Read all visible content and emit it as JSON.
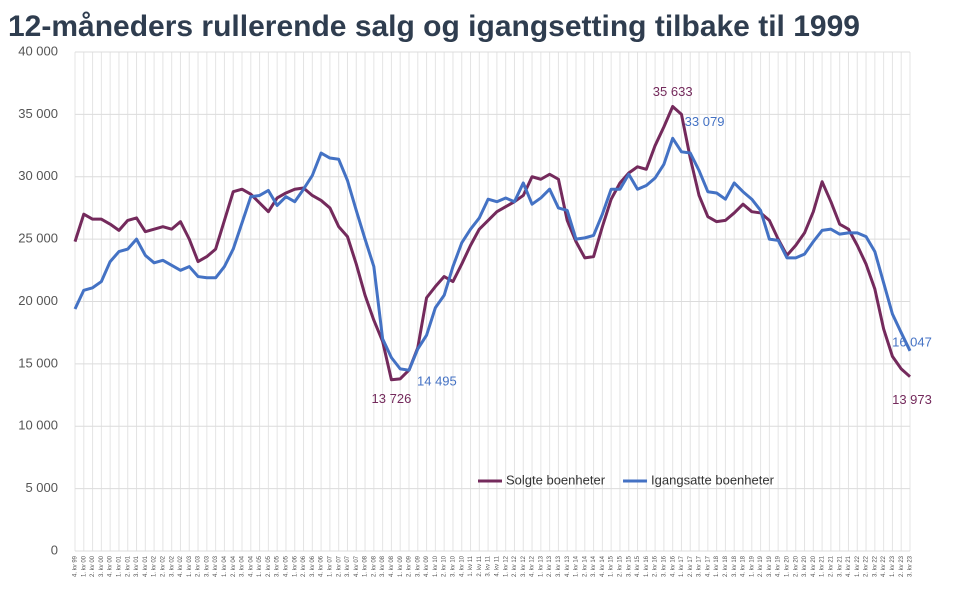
{
  "chart_data": {
    "type": "line",
    "title": "12-måneders rullerende salg og igangsetting tilbake til 1999",
    "categories": [
      "4. kv 99",
      "1. kv 00",
      "2. kv 00",
      "3. kv 00",
      "4. kv 00",
      "1. kv 01",
      "2. kv 01",
      "3. kv 01",
      "4. kv 01",
      "1. kv 02",
      "2. kv 02",
      "3. kv 02",
      "4. kv 02",
      "1. kv 03",
      "2. kv 03",
      "3. kv 03",
      "4. kv 03",
      "1. kv 04",
      "2. kv 04",
      "3. kv 04",
      "4. kv 04",
      "1. kv 05",
      "2. kv 05",
      "3. kv 05",
      "4. kv 05",
      "1. kv 06",
      "2. kv 06",
      "3. kv 06",
      "4. kv 06",
      "1. kv 07",
      "2. kv 07",
      "3. kv 07",
      "4. kv 07",
      "1. kv 08",
      "2. kv 08",
      "3. kv 08",
      "4. kv 08",
      "1. kv 09",
      "2. kv 09",
      "3. kv 09",
      "4. kv 09",
      "1. kv 10",
      "2. kv 10",
      "3. kv 10",
      "4. kv 10",
      "1. kv 11",
      "2. kv 11",
      "3. kv 11",
      "4. kv 11",
      "1. kv 12",
      "2. kv 12",
      "3. kv 12",
      "4. kv 12",
      "1. kv 13",
      "2. kv 13",
      "3. kv 13",
      "4. kv 13",
      "1. kv 14",
      "2. kv 14",
      "3. kv 14",
      "4. kv 14",
      "1. kv 15",
      "2. kv 15",
      "3. kv 15",
      "4. kv 15",
      "1. kv 16",
      "2. kv 16",
      "3. kv 16",
      "4. kv 16",
      "1. kv 17",
      "2. kv 17",
      "3. kv 17",
      "4. kv 17",
      "1. kv 18",
      "2. kv 18",
      "3. kv 18",
      "4. kv 18",
      "1. kv 19",
      "2. kv 19",
      "3. kv 19",
      "4. kv 19",
      "1. kv 20",
      "2. kv 20",
      "3. kv 20",
      "4. kv 20",
      "1. kv 21",
      "2. kv 21",
      "3. kv 21",
      "4. kv 21",
      "1. kv 22",
      "2. kv 22",
      "3. kv 22",
      "4. kv 22",
      "1. kv 23",
      "2. kv 23",
      "3. kv 23"
    ],
    "series": [
      {
        "name": "Solgte boenheter",
        "color": "#742a5c",
        "values": [
          24800,
          27000,
          26600,
          26600,
          26200,
          25700,
          26500,
          26700,
          25600,
          25800,
          26000,
          25800,
          26400,
          25000,
          23200,
          23600,
          24200,
          26500,
          28800,
          29000,
          28600,
          27900,
          27200,
          28300,
          28700,
          29000,
          29100,
          28500,
          28100,
          27500,
          26000,
          25200,
          23000,
          20500,
          18500,
          16800,
          13726,
          13800,
          14500,
          16300,
          20300,
          21200,
          22000,
          21600,
          23000,
          24500,
          25800,
          26500,
          27200,
          27600,
          28000,
          28500,
          30000,
          29800,
          30200,
          29800,
          26500,
          24800,
          23500,
          23600,
          26000,
          28200,
          29500,
          30300,
          30800,
          30600,
          32500,
          34000,
          35633,
          35000,
          31500,
          28500,
          26800,
          26400,
          26500,
          27100,
          27800,
          27200,
          27100,
          26500,
          25000,
          23700,
          24500,
          25500,
          27200,
          29600,
          28000,
          26200,
          25800,
          24500,
          23000,
          21000,
          17800,
          15600,
          14600,
          13973
        ],
        "value_labels": [
          null,
          null,
          null,
          null,
          null,
          null,
          null,
          null,
          null,
          null,
          null,
          null,
          null,
          null,
          null,
          null,
          null,
          null,
          null,
          null,
          null,
          null,
          null,
          null,
          null,
          null,
          null,
          null,
          null,
          null,
          null,
          null,
          null,
          null,
          null,
          null,
          "13 726",
          null,
          null,
          null,
          null,
          null,
          null,
          null,
          null,
          null,
          null,
          null,
          null,
          null,
          null,
          null,
          null,
          null,
          null,
          null,
          null,
          null,
          null,
          null,
          null,
          null,
          null,
          null,
          null,
          null,
          null,
          null,
          "35 633",
          null,
          null,
          null,
          null,
          null,
          null,
          null,
          null,
          null,
          null,
          null,
          null,
          null,
          null,
          null,
          null,
          null,
          null,
          null,
          null,
          null,
          null,
          null,
          null,
          null,
          null,
          "13 973"
        ]
      },
      {
        "name": "Igangsatte boenheter",
        "color": "#4472c4",
        "values": [
          19400,
          20900,
          21100,
          21600,
          23200,
          24000,
          24200,
          25000,
          23700,
          23100,
          23300,
          22900,
          22500,
          22800,
          22000,
          21900,
          21900,
          22800,
          24200,
          26300,
          28400,
          28500,
          28900,
          27700,
          28400,
          28000,
          29000,
          30100,
          31900,
          31500,
          31400,
          29700,
          27300,
          25000,
          22800,
          17000,
          15500,
          14600,
          14495,
          16200,
          17300,
          19500,
          20500,
          22800,
          24700,
          25800,
          26700,
          28200,
          28000,
          28300,
          28000,
          29500,
          27800,
          28300,
          29000,
          27500,
          27300,
          25000,
          25100,
          25300,
          27000,
          29000,
          29000,
          30200,
          29000,
          29300,
          29900,
          31000,
          33079,
          32000,
          31900,
          30500,
          28800,
          28700,
          28200,
          29500,
          28800,
          28200,
          27300,
          25000,
          24900,
          23500,
          23500,
          23800,
          24800,
          25700,
          25800,
          25400,
          25500,
          25500,
          25200,
          24000,
          21500,
          19000,
          17500,
          16047
        ],
        "value_labels": [
          null,
          null,
          null,
          null,
          null,
          null,
          null,
          null,
          null,
          null,
          null,
          null,
          null,
          null,
          null,
          null,
          null,
          null,
          null,
          null,
          null,
          null,
          null,
          null,
          null,
          null,
          null,
          null,
          null,
          null,
          null,
          null,
          null,
          null,
          null,
          null,
          null,
          null,
          "14 495",
          null,
          null,
          null,
          null,
          null,
          null,
          null,
          null,
          null,
          null,
          null,
          null,
          null,
          null,
          null,
          null,
          null,
          null,
          null,
          null,
          null,
          null,
          null,
          null,
          null,
          null,
          null,
          null,
          null,
          "33 079",
          null,
          null,
          null,
          null,
          null,
          null,
          null,
          null,
          null,
          null,
          null,
          null,
          null,
          null,
          null,
          null,
          null,
          null,
          null,
          null,
          null,
          null,
          null,
          null,
          null,
          null,
          "16 047"
        ]
      }
    ],
    "ylim": [
      0,
      40000
    ],
    "yticks": [
      0,
      {
        "value": 5000,
        "label": "5 000"
      },
      {
        "value": 10000,
        "label": "10 000"
      },
      {
        "value": 15000,
        "label": "15 000"
      },
      {
        "value": 20000,
        "label": "20 000"
      },
      {
        "value": 25000,
        "label": "25 000"
      },
      {
        "value": 30000,
        "label": "30 000"
      },
      {
        "value": 35000,
        "label": "35 000"
      },
      {
        "value": 40000,
        "label": "40 000"
      }
    ],
    "grid": true
  }
}
